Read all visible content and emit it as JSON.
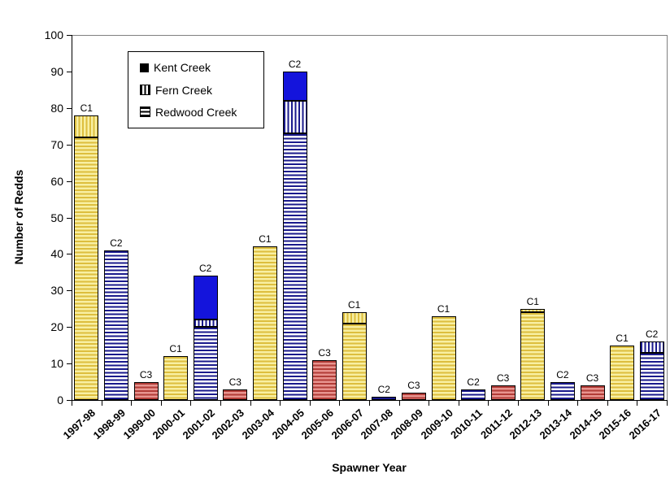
{
  "chart_data": {
    "type": "bar",
    "stacked": true,
    "title": "",
    "xlabel": "Spawner Year",
    "ylabel": "Number of Redds",
    "ylim": [
      0,
      100
    ],
    "ytick_interval": 10,
    "grid": false,
    "legend_position": "top-left-inside",
    "categories": [
      "1997-98",
      "1998-99",
      "1999-00",
      "2000-01",
      "2001-02",
      "2002-03",
      "2003-04",
      "2004-05",
      "2005-06",
      "2006-07",
      "2007-08",
      "2008-09",
      "2009-10",
      "2010-11",
      "2011-12",
      "2012-13",
      "2013-14",
      "2014-15",
      "2015-16",
      "2016-17"
    ],
    "series": [
      {
        "name": "Redwood Creek",
        "pattern": "horizontal",
        "values": [
          72,
          41,
          5,
          12,
          20,
          3,
          42,
          73,
          11,
          21,
          1,
          2,
          23,
          3,
          4,
          24,
          5,
          4,
          15,
          13
        ]
      },
      {
        "name": "Fern Creek",
        "pattern": "vertical",
        "values": [
          6,
          0,
          0,
          0,
          2,
          0,
          0,
          9,
          0,
          3,
          0,
          0,
          0,
          0,
          0,
          1,
          0,
          0,
          0,
          3
        ]
      },
      {
        "name": "Kent Creek",
        "pattern": "solid",
        "values": [
          0,
          0,
          0,
          0,
          12,
          0,
          0,
          8,
          0,
          0,
          0,
          0,
          0,
          0,
          0,
          0,
          0,
          0,
          0,
          0
        ]
      }
    ],
    "bar_totals": [
      78,
      41,
      5,
      12,
      34,
      3,
      42,
      90,
      11,
      24,
      1,
      2,
      23,
      3,
      4,
      25,
      5,
      4,
      15,
      16
    ],
    "bar_cohorts": [
      "C1",
      "C2",
      "C3",
      "C1",
      "C2",
      "C3",
      "C1",
      "C2",
      "C3",
      "C1",
      "C2",
      "C3",
      "C1",
      "C2",
      "C3",
      "C1",
      "C2",
      "C3",
      "C1",
      "C2"
    ],
    "cohort_colors": {
      "C1": {
        "stripe": "#DDBE3E",
        "bg": "#F8EFA2",
        "solid": "#E8CF4A"
      },
      "C2": {
        "stripe": "#1A1A8C",
        "bg": "#FFFFFF",
        "solid": "#1414DC"
      },
      "C3": {
        "stripe": "#B23C37",
        "bg": "#E8948F",
        "solid": "#C0504D"
      }
    },
    "legend": [
      {
        "label": "Kent Creek",
        "pattern": "solid"
      },
      {
        "label": "Fern Creek",
        "pattern": "vertical"
      },
      {
        "label": "Redwood Creek",
        "pattern": "horizontal"
      }
    ],
    "legend_swatch_color": "#000000",
    "axis_color": "#000000",
    "frame_color": "#808080"
  }
}
